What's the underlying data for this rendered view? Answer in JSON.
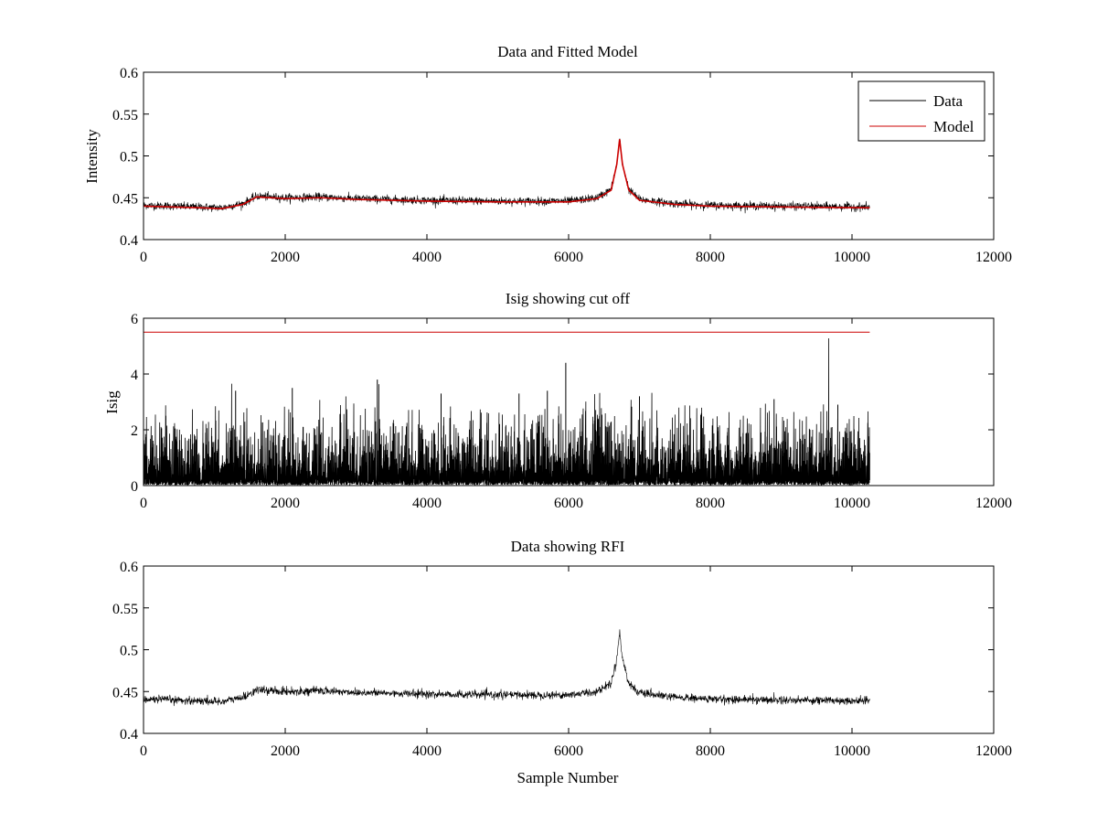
{
  "figure": {
    "background": "#ffffff"
  },
  "chart_data": [
    {
      "type": "line",
      "title": "Data and Fitted Model",
      "xlabel": "",
      "ylabel": "Intensity",
      "xlim": [
        0,
        12000
      ],
      "ylim": [
        0.4,
        0.6
      ],
      "x_ticks": [
        0,
        2000,
        4000,
        6000,
        8000,
        10000,
        12000
      ],
      "y_ticks": [
        0.4,
        0.45,
        0.5,
        0.55,
        0.6
      ],
      "x_tick_labels": [
        "0",
        "2000",
        "4000",
        "6000",
        "8000",
        "10000",
        "12000"
      ],
      "y_tick_labels": [
        "0.4",
        "0.45",
        "0.5",
        "0.55",
        "0.6"
      ],
      "grid": false,
      "legend_position": "top-right",
      "legend": [
        {
          "label": "Data",
          "color": "#000000"
        },
        {
          "label": "Model",
          "color": "#cc0000"
        }
      ],
      "series": [
        {
          "name": "Data",
          "color": "#000000",
          "noise_amplitude": 0.004,
          "x": [
            0,
            800,
            1100,
            1400,
            1600,
            2000,
            2500,
            3000,
            4000,
            5000,
            6000,
            6400,
            6600,
            6680,
            6720,
            6760,
            6850,
            7000,
            7500,
            8000,
            9000,
            10250
          ],
          "y": [
            0.441,
            0.439,
            0.438,
            0.443,
            0.452,
            0.45,
            0.451,
            0.449,
            0.447,
            0.446,
            0.446,
            0.45,
            0.46,
            0.49,
            0.52,
            0.49,
            0.46,
            0.448,
            0.443,
            0.441,
            0.44,
            0.439
          ]
        },
        {
          "name": "Model",
          "color": "#cc0000",
          "x": [
            0,
            800,
            1100,
            1400,
            1600,
            2000,
            2500,
            3000,
            4000,
            5000,
            6000,
            6400,
            6600,
            6680,
            6720,
            6760,
            6850,
            7000,
            7500,
            8000,
            9000,
            10250
          ],
          "y": [
            0.44,
            0.438,
            0.437,
            0.442,
            0.451,
            0.449,
            0.45,
            0.448,
            0.446,
            0.445,
            0.445,
            0.449,
            0.459,
            0.49,
            0.52,
            0.49,
            0.459,
            0.447,
            0.442,
            0.44,
            0.439,
            0.438
          ]
        }
      ]
    },
    {
      "type": "line",
      "title": "Isig showing cut off",
      "xlabel": "",
      "ylabel": "Isig",
      "xlim": [
        0,
        12000
      ],
      "ylim": [
        0,
        6
      ],
      "x_ticks": [
        0,
        2000,
        4000,
        6000,
        8000,
        10000,
        12000
      ],
      "y_ticks": [
        0,
        2,
        4,
        6
      ],
      "x_tick_labels": [
        "0",
        "2000",
        "4000",
        "6000",
        "8000",
        "10000",
        "12000"
      ],
      "y_tick_labels": [
        "0",
        "2",
        "4",
        "6"
      ],
      "grid": false,
      "series": [
        {
          "name": "",
          "color": "#000000",
          "style": "noise",
          "x_range": [
            0,
            10250
          ],
          "typical_max": 2.0,
          "spikes": [
            {
              "x": 1300,
              "y": 3.4
            },
            {
              "x": 2100,
              "y": 3.5
            },
            {
              "x": 3300,
              "y": 3.8
            },
            {
              "x": 4200,
              "y": 3.3
            },
            {
              "x": 5300,
              "y": 3.3
            },
            {
              "x": 5700,
              "y": 3.4
            },
            {
              "x": 5960,
              "y": 4.4
            },
            {
              "x": 7000,
              "y": 3.2
            },
            {
              "x": 8900,
              "y": 3.1
            },
            {
              "x": 9800,
              "y": 2.9
            }
          ]
        },
        {
          "name": "",
          "color": "#cc0000",
          "x": [
            0,
            10250
          ],
          "y": [
            5.5,
            5.5
          ]
        }
      ]
    },
    {
      "type": "line",
      "title": "Data showing RFI",
      "xlabel": "Sample Number",
      "ylabel": "",
      "xlim": [
        0,
        12000
      ],
      "ylim": [
        0.4,
        0.6
      ],
      "x_ticks": [
        0,
        2000,
        4000,
        6000,
        8000,
        10000,
        12000
      ],
      "y_ticks": [
        0.4,
        0.45,
        0.5,
        0.55,
        0.6
      ],
      "x_tick_labels": [
        "0",
        "2000",
        "4000",
        "6000",
        "8000",
        "10000",
        "12000"
      ],
      "y_tick_labels": [
        "0.4",
        "0.45",
        "0.5",
        "0.55",
        "0.6"
      ],
      "grid": false,
      "series": [
        {
          "name": "",
          "color": "#000000",
          "noise_amplitude": 0.004,
          "x": [
            0,
            800,
            1100,
            1400,
            1600,
            2000,
            2500,
            3000,
            4000,
            5000,
            6000,
            6400,
            6600,
            6680,
            6720,
            6760,
            6850,
            7000,
            7500,
            8000,
            9000,
            10250
          ],
          "y": [
            0.441,
            0.439,
            0.438,
            0.443,
            0.452,
            0.45,
            0.451,
            0.449,
            0.447,
            0.446,
            0.446,
            0.45,
            0.46,
            0.49,
            0.52,
            0.49,
            0.46,
            0.448,
            0.443,
            0.441,
            0.44,
            0.439
          ]
        }
      ]
    }
  ]
}
